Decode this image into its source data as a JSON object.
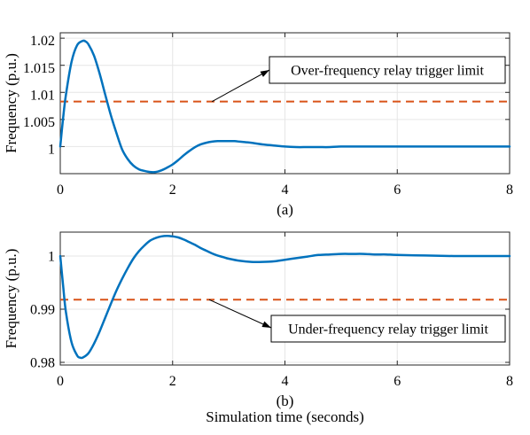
{
  "chart_data": [
    {
      "type": "line",
      "panel_label": "(a)",
      "xlabel": "",
      "ylabel": "Frequency (p.u.)",
      "xlim": [
        0,
        8
      ],
      "ylim": [
        0.995,
        1.021
      ],
      "xticks": [
        0,
        2,
        4,
        6,
        8
      ],
      "xtick_labels": [
        "0",
        "2",
        "4",
        "6",
        "8"
      ],
      "yticks": [
        1,
        1.005,
        1.01,
        1.015,
        1.02
      ],
      "ytick_labels": [
        "1",
        "1.005",
        "1.01",
        "1.015",
        "1.02"
      ],
      "grid": true,
      "series": [
        {
          "color": "#0072BD",
          "x": [
            0,
            0.05,
            0.1,
            0.2,
            0.3,
            0.4,
            0.45,
            0.5,
            0.6,
            0.7,
            0.8,
            0.9,
            1.0,
            1.1,
            1.2,
            1.3,
            1.4,
            1.5,
            1.6,
            1.7,
            1.8,
            1.9,
            2.0,
            2.1,
            2.2,
            2.3,
            2.4,
            2.5,
            2.6,
            2.7,
            2.8,
            2.9,
            3.0,
            3.1,
            3.2,
            3.3,
            3.4,
            3.6,
            3.8,
            4.0,
            4.2,
            4.4,
            4.6,
            4.8,
            5.0,
            5.5,
            6.0,
            6.5,
            7.0,
            7.5,
            8.0
          ],
          "y": [
            1.0,
            1.0052,
            1.0095,
            1.0156,
            1.0187,
            1.0195,
            1.0194,
            1.0189,
            1.0168,
            1.0135,
            1.0096,
            1.0058,
            1.0025,
            0.9995,
            0.9977,
            0.9965,
            0.9958,
            0.9955,
            0.9953,
            0.9953,
            0.9956,
            0.9961,
            0.9967,
            0.9975,
            0.9984,
            0.9992,
            0.9999,
            1.0004,
            1.0007,
            1.0009,
            1.001,
            1.001,
            1.001,
            1.001,
            1.0009,
            1.0008,
            1.0007,
            1.0004,
            1.0002,
            1.0,
            0.9999,
            0.9999,
            0.9999,
            0.9999,
            1.0,
            1.0,
            1.0,
            1.0,
            1.0,
            1.0,
            1.0
          ]
        }
      ],
      "reference_line": {
        "y": 1.0083,
        "color": "#D95319",
        "style": "dashed"
      },
      "annotation": {
        "text": "Over-frequency relay trigger limit",
        "arrow_to": [
          2.7,
          1.0083
        ]
      }
    },
    {
      "type": "line",
      "panel_label": "(b)",
      "xlabel": "Simulation time (seconds)",
      "ylabel": "Frequency (p.u.)",
      "xlim": [
        0,
        8
      ],
      "ylim": [
        0.9795,
        1.0045
      ],
      "xticks": [
        0,
        2,
        4,
        6,
        8
      ],
      "xtick_labels": [
        "0",
        "2",
        "4",
        "6",
        "8"
      ],
      "yticks": [
        0.98,
        0.99,
        1
      ],
      "ytick_labels": [
        "0.98",
        "0.99",
        "1"
      ],
      "grid": true,
      "series": [
        {
          "color": "#0072BD",
          "x": [
            0,
            0.05,
            0.1,
            0.2,
            0.3,
            0.35,
            0.4,
            0.5,
            0.6,
            0.7,
            0.8,
            0.9,
            1.0,
            1.1,
            1.2,
            1.3,
            1.4,
            1.5,
            1.6,
            1.7,
            1.8,
            1.9,
            2.0,
            2.1,
            2.2,
            2.3,
            2.4,
            2.5,
            2.6,
            2.7,
            2.8,
            2.9,
            3.0,
            3.2,
            3.4,
            3.6,
            3.8,
            4.0,
            4.2,
            4.4,
            4.6,
            4.8,
            5.0,
            5.2,
            5.4,
            5.6,
            5.8,
            6.0,
            6.5,
            7.0,
            7.5,
            8.0
          ],
          "y": [
            1.0,
            0.9945,
            0.9895,
            0.9838,
            0.9813,
            0.9809,
            0.9809,
            0.9817,
            0.9835,
            0.9858,
            0.9884,
            0.991,
            0.9935,
            0.9957,
            0.9977,
            0.9995,
            1.0009,
            1.002,
            1.0029,
            1.0034,
            1.0037,
            1.0038,
            1.0037,
            1.0035,
            1.0031,
            1.0026,
            1.0021,
            1.0015,
            1.001,
            1.0005,
            1.0001,
            0.9998,
            0.9995,
            0.9991,
            0.9989,
            0.9989,
            0.999,
            0.9993,
            0.9996,
            0.9999,
            1.0002,
            1.0003,
            1.0004,
            1.0004,
            1.0004,
            1.0003,
            1.0003,
            1.0002,
            1.0001,
            1.0,
            1.0,
            1.0
          ]
        }
      ],
      "reference_line": {
        "y": 0.9918,
        "color": "#D95319",
        "style": "dashed"
      },
      "annotation": {
        "text": "Under-frequency relay trigger limit",
        "arrow_to": [
          2.65,
          0.9918
        ]
      }
    }
  ]
}
